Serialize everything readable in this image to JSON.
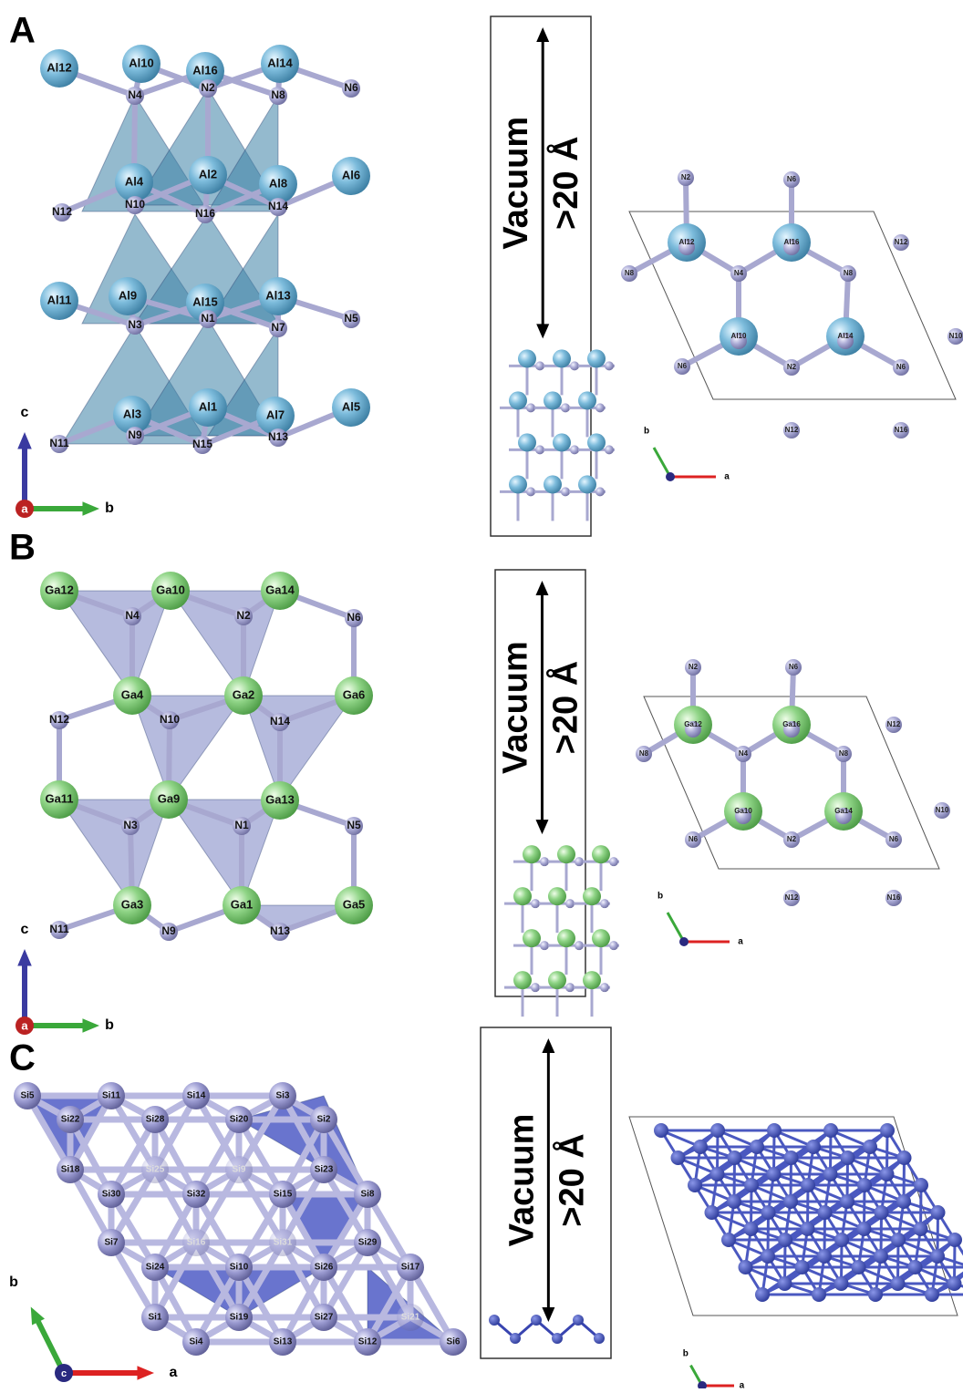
{
  "panels": [
    {
      "letter": "A",
      "side_view": {
        "atoms": [
          "Al12",
          "Al10",
          "Al16",
          "Al14",
          "N4",
          "N2",
          "N8",
          "N6",
          "Al4",
          "Al2",
          "Al8",
          "Al6",
          "N12",
          "N10",
          "N16",
          "N14",
          "Al11",
          "Al9",
          "Al15",
          "Al13",
          "N3",
          "N1",
          "N7",
          "N5",
          "Al3",
          "Al1",
          "Al7",
          "Al5",
          "N11",
          "N9",
          "N15",
          "N13"
        ],
        "axes": {
          "c": "c",
          "a": "a",
          "b": "b"
        }
      },
      "vacuum": {
        "label": "Vacuum",
        "distance": ">20 Å"
      },
      "top_view": {
        "atoms": [
          "N2",
          "N6",
          "Al12",
          "Al16",
          "N12",
          "N8",
          "N4",
          "N8",
          "Al10",
          "Al14",
          "N10",
          "N6",
          "N2",
          "N6",
          "N12",
          "N16"
        ],
        "axes": {
          "b": "b",
          "a": "a"
        }
      }
    },
    {
      "letter": "B",
      "side_view": {
        "atoms": [
          "Ga12",
          "Ga10",
          "Ga14",
          "N4",
          "N2",
          "N6",
          "Ga4",
          "Ga2",
          "Ga6",
          "N12",
          "N10",
          "N14",
          "Ga11",
          "Ga9",
          "Ga13",
          "N3",
          "N1",
          "N5",
          "Ga3",
          "Ga1",
          "Ga5",
          "N11",
          "N9",
          "N13"
        ],
        "axes": {
          "c": "c",
          "a": "a",
          "b": "b"
        }
      },
      "vacuum": {
        "label": "Vacuum",
        "distance": ">20 Å"
      },
      "top_view": {
        "atoms": [
          "N2",
          "N6",
          "Ga12",
          "Ga16",
          "N12",
          "N8",
          "N4",
          "N8",
          "Ga10",
          "Ga14",
          "N10",
          "N6",
          "N2",
          "N6",
          "N12",
          "N16"
        ],
        "axes": {
          "b": "b",
          "a": "a"
        }
      }
    },
    {
      "letter": "C",
      "side_view": {
        "atoms": [
          "Si5",
          "Si11",
          "Si14",
          "Si3",
          "Si22",
          "Si28",
          "Si20",
          "Si2",
          "Si18",
          "Si25",
          "Si9",
          "Si23",
          "Si30",
          "Si32",
          "Si15",
          "Si8",
          "Si7",
          "Si16",
          "Si31",
          "Si29",
          "Si24",
          "Si10",
          "Si26",
          "Si17",
          "Si1",
          "Si19",
          "Si27",
          "Si21",
          "Si4",
          "Si13",
          "Si12",
          "Si6"
        ],
        "axes": {
          "c": "c",
          "a": "a",
          "b": "b"
        }
      },
      "vacuum": {
        "label": "Vacuum",
        "distance": ">20 Å"
      },
      "top_view": {
        "axes": {
          "b": "b",
          "a": "a"
        }
      }
    }
  ]
}
